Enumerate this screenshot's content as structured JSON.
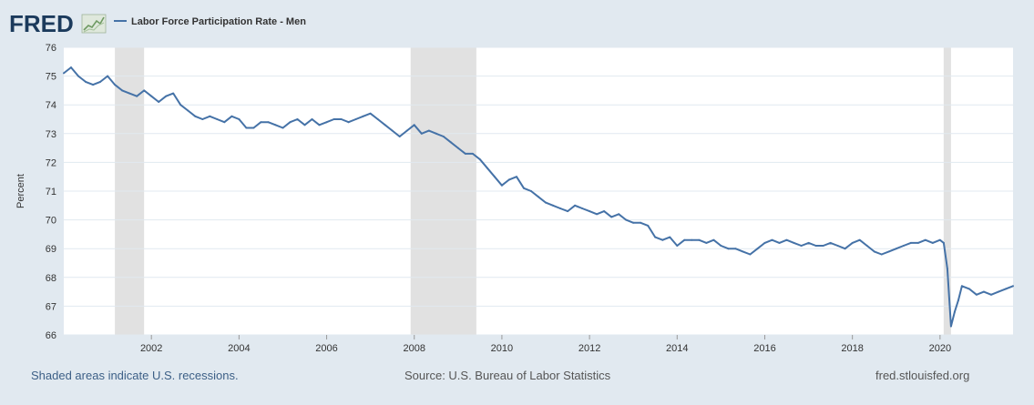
{
  "header": {
    "logo_text": "FRED",
    "logo_icon": "chart-line-icon"
  },
  "footer": {
    "recessions_note": "Shaded areas indicate U.S. recessions.",
    "source": "Source: U.S. Bureau of Labor Statistics",
    "site": "fred.stlouisfed.org"
  },
  "colors": {
    "series": "#4572a7",
    "recession": "#e1e1e1",
    "background": "#e1e9f0",
    "plot": "#ffffff",
    "grid": "#e1e9f0"
  },
  "chart_data": {
    "type": "line",
    "title": "",
    "xlabel": "",
    "ylabel": "Percent",
    "ylim": [
      66,
      76
    ],
    "xlim": [
      "2000-01",
      "2021-09"
    ],
    "grid": true,
    "legend": "top-left",
    "y_ticks": [
      "66",
      "67",
      "68",
      "69",
      "70",
      "71",
      "72",
      "73",
      "74",
      "75",
      "76"
    ],
    "x_ticks": [
      "2002",
      "2004",
      "2006",
      "2008",
      "2010",
      "2012",
      "2014",
      "2016",
      "2018",
      "2020"
    ],
    "recessions": [
      [
        "2001-03",
        "2001-11"
      ],
      [
        "2007-12",
        "2009-06"
      ],
      [
        "2020-02",
        "2020-04"
      ]
    ],
    "series": [
      {
        "name": "Labor Force Participation Rate - Men",
        "x": [
          "2000-01",
          "2000-03",
          "2000-05",
          "2000-07",
          "2000-09",
          "2000-11",
          "2001-01",
          "2001-03",
          "2001-05",
          "2001-07",
          "2001-09",
          "2001-11",
          "2002-01",
          "2002-03",
          "2002-05",
          "2002-07",
          "2002-09",
          "2002-11",
          "2003-01",
          "2003-03",
          "2003-05",
          "2003-07",
          "2003-09",
          "2003-11",
          "2004-01",
          "2004-03",
          "2004-05",
          "2004-07",
          "2004-09",
          "2004-11",
          "2005-01",
          "2005-03",
          "2005-05",
          "2005-07",
          "2005-09",
          "2005-11",
          "2006-01",
          "2006-03",
          "2006-05",
          "2006-07",
          "2006-09",
          "2006-11",
          "2007-01",
          "2007-03",
          "2007-05",
          "2007-07",
          "2007-09",
          "2007-11",
          "2008-01",
          "2008-03",
          "2008-05",
          "2008-07",
          "2008-09",
          "2008-11",
          "2009-01",
          "2009-03",
          "2009-05",
          "2009-07",
          "2009-09",
          "2009-11",
          "2010-01",
          "2010-03",
          "2010-05",
          "2010-07",
          "2010-09",
          "2010-11",
          "2011-01",
          "2011-03",
          "2011-05",
          "2011-07",
          "2011-09",
          "2011-11",
          "2012-01",
          "2012-03",
          "2012-05",
          "2012-07",
          "2012-09",
          "2012-11",
          "2013-01",
          "2013-03",
          "2013-05",
          "2013-07",
          "2013-09",
          "2013-11",
          "2014-01",
          "2014-03",
          "2014-05",
          "2014-07",
          "2014-09",
          "2014-11",
          "2015-01",
          "2015-03",
          "2015-05",
          "2015-07",
          "2015-09",
          "2015-11",
          "2016-01",
          "2016-03",
          "2016-05",
          "2016-07",
          "2016-09",
          "2016-11",
          "2017-01",
          "2017-03",
          "2017-05",
          "2017-07",
          "2017-09",
          "2017-11",
          "2018-01",
          "2018-03",
          "2018-05",
          "2018-07",
          "2018-09",
          "2018-11",
          "2019-01",
          "2019-03",
          "2019-05",
          "2019-07",
          "2019-09",
          "2019-11",
          "2020-01",
          "2020-02",
          "2020-03",
          "2020-04",
          "2020-05",
          "2020-06",
          "2020-07",
          "2020-09",
          "2020-11",
          "2021-01",
          "2021-03",
          "2021-05",
          "2021-07",
          "2021-09"
        ],
        "values": [
          75.1,
          75.3,
          75.0,
          74.8,
          74.7,
          74.8,
          75.0,
          74.7,
          74.5,
          74.4,
          74.3,
          74.5,
          74.3,
          74.1,
          74.3,
          74.4,
          74.0,
          73.8,
          73.6,
          73.5,
          73.6,
          73.5,
          73.4,
          73.6,
          73.5,
          73.2,
          73.2,
          73.4,
          73.4,
          73.3,
          73.2,
          73.4,
          73.5,
          73.3,
          73.5,
          73.3,
          73.4,
          73.5,
          73.5,
          73.4,
          73.5,
          73.6,
          73.7,
          73.5,
          73.3,
          73.1,
          72.9,
          73.1,
          73.3,
          73.0,
          73.1,
          73.0,
          72.9,
          72.7,
          72.5,
          72.3,
          72.3,
          72.1,
          71.8,
          71.5,
          71.2,
          71.4,
          71.5,
          71.1,
          71.0,
          70.8,
          70.6,
          70.5,
          70.4,
          70.3,
          70.5,
          70.4,
          70.3,
          70.2,
          70.3,
          70.1,
          70.2,
          70.0,
          69.9,
          69.9,
          69.8,
          69.4,
          69.3,
          69.4,
          69.1,
          69.3,
          69.3,
          69.3,
          69.2,
          69.3,
          69.1,
          69.0,
          69.0,
          68.9,
          68.8,
          69.0,
          69.2,
          69.3,
          69.2,
          69.3,
          69.2,
          69.1,
          69.2,
          69.1,
          69.1,
          69.2,
          69.1,
          69.0,
          69.2,
          69.3,
          69.1,
          68.9,
          68.8,
          68.9,
          69.0,
          69.1,
          69.2,
          69.2,
          69.3,
          69.2,
          69.3,
          69.2,
          68.3,
          66.3,
          66.8,
          67.2,
          67.7,
          67.6,
          67.4,
          67.5,
          67.4,
          67.5,
          67.6,
          67.7
        ]
      }
    ]
  }
}
